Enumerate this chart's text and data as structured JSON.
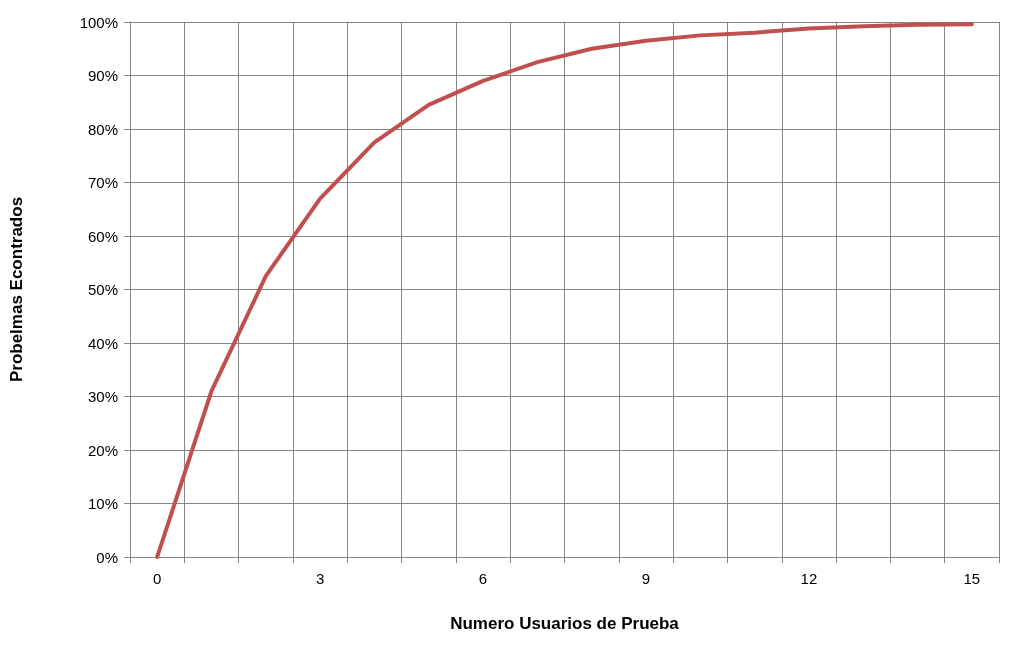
{
  "chart_data": {
    "type": "line",
    "xlabel": "Numero Usuarios de Prueba",
    "ylabel": "Probelmas Econtrados",
    "categories": [
      "0",
      null,
      null,
      "3",
      null,
      null,
      "6",
      null,
      null,
      "9",
      null,
      null,
      "12",
      null,
      null,
      "15"
    ],
    "series": [
      {
        "color": "#c0504d",
        "values": [
          0,
          31,
          52.5,
          67,
          77.5,
          84.5,
          89,
          92.5,
          95,
          96.5,
          97.5,
          98,
          98.8,
          99.2,
          99.5,
          99.6
        ]
      }
    ],
    "ylim": [
      0,
      100
    ],
    "yticks": [
      {
        "value": 0,
        "label": "0%"
      },
      {
        "value": 10,
        "label": "10%"
      },
      {
        "value": 20,
        "label": "20%"
      },
      {
        "value": 30,
        "label": "30%"
      },
      {
        "value": 40,
        "label": "40%"
      },
      {
        "value": 50,
        "label": "50%"
      },
      {
        "value": 60,
        "label": "60%"
      },
      {
        "value": 70,
        "label": "70%"
      },
      {
        "value": 80,
        "label": "80%"
      },
      {
        "value": 90,
        "label": "90%"
      },
      {
        "value": 100,
        "label": "100%"
      }
    ],
    "grid": true,
    "marker": "none",
    "line_style": "solid"
  }
}
